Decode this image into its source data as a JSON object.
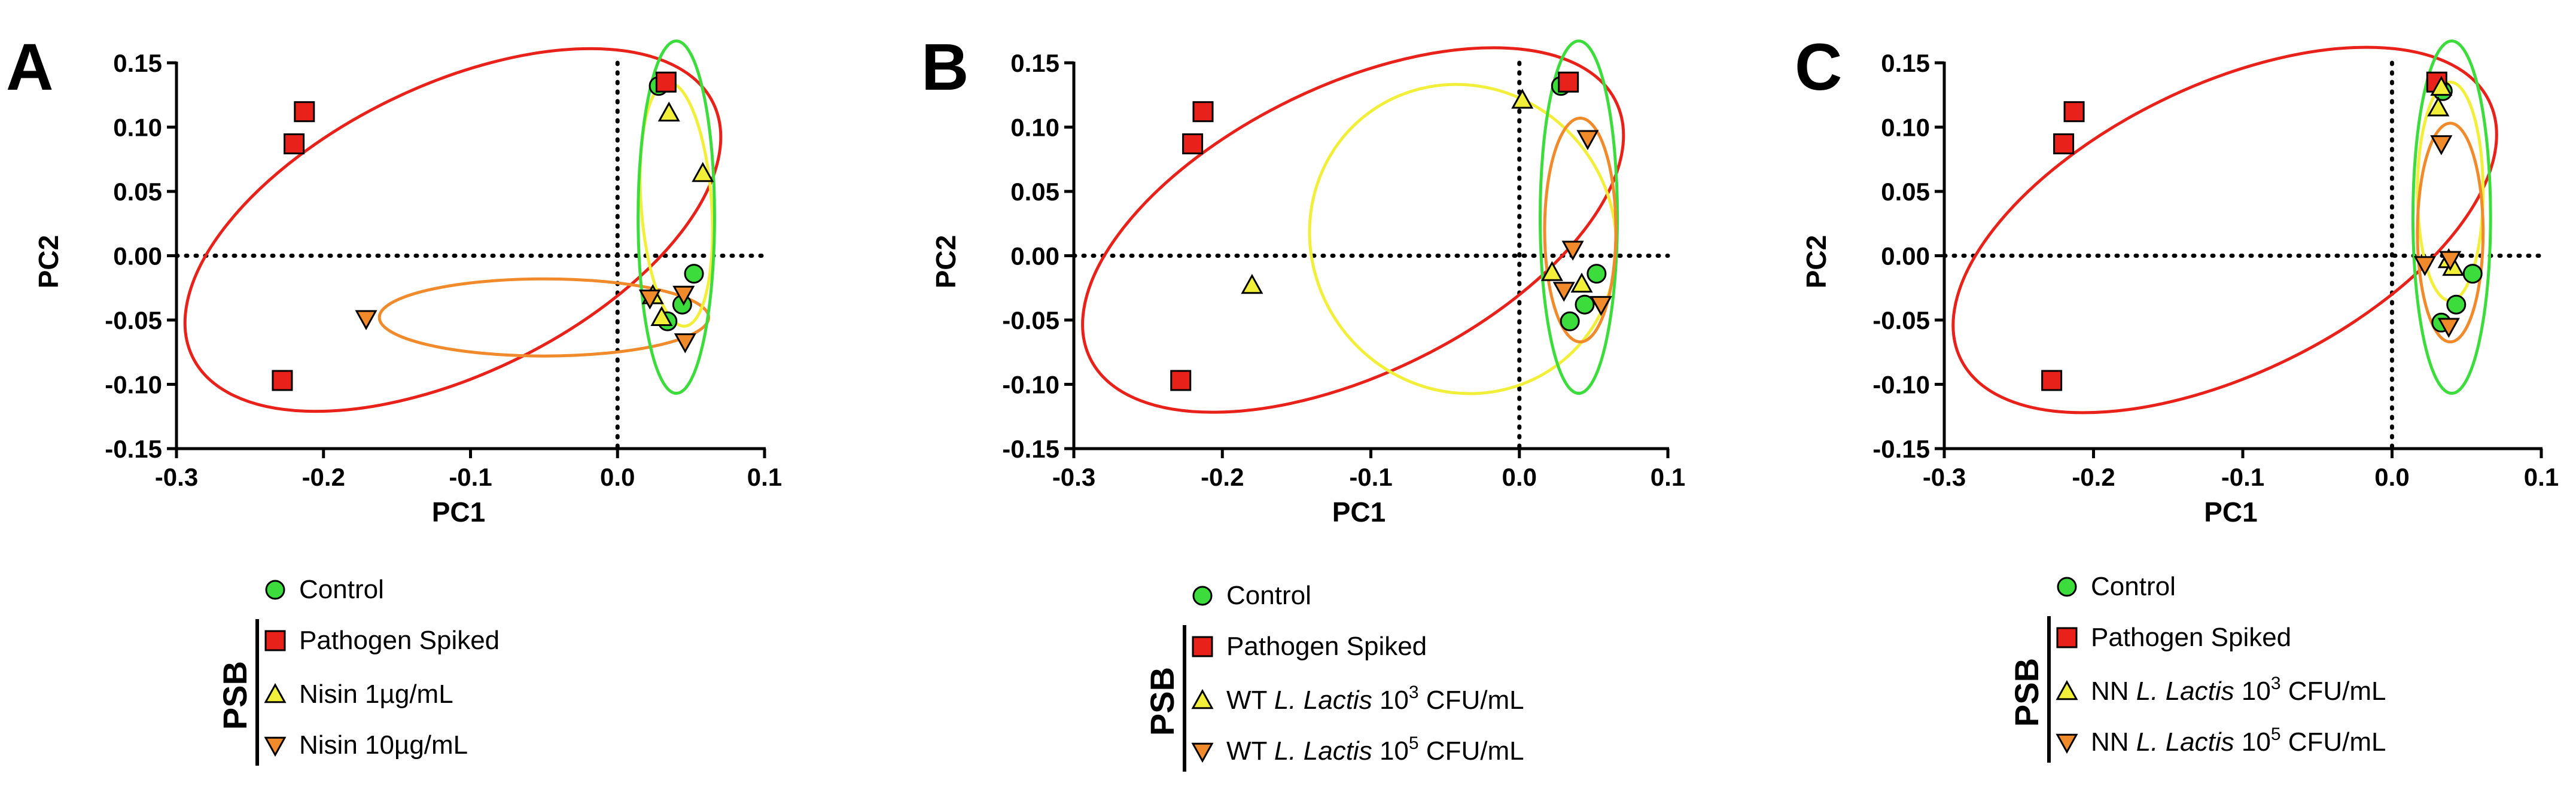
{
  "chart_data": [
    {
      "type": "scatter",
      "panel": "A",
      "xlabel": "PC1",
      "ylabel": "PC2",
      "xlim": [
        -0.3,
        0.1
      ],
      "ylim": [
        -0.15,
        0.15
      ],
      "xticks": [
        "-0.3",
        "-0.2",
        "-0.1",
        "0.0",
        "0.1"
      ],
      "yticks": [
        "0.15",
        "0.10",
        "0.05",
        "0.00",
        "-0.05",
        "-0.10",
        "-0.15"
      ],
      "legend": {
        "group_label": "PSB",
        "entries": [
          {
            "label": "Control"
          },
          {
            "label": "Pathogen Spiked"
          },
          {
            "label": "Nisin 1µg/mL"
          },
          {
            "label": "Nisin 10µg/mL"
          }
        ]
      },
      "series": [
        {
          "name": "Control",
          "marker": "circle",
          "color": "#3ddc3d",
          "points": [
            [
              0.028,
              0.132
            ],
            [
              0.052,
              -0.014
            ],
            [
              0.044,
              -0.038
            ],
            [
              0.034,
              -0.051
            ]
          ]
        },
        {
          "name": "Pathogen Spiked",
          "marker": "square",
          "color": "#e8221a",
          "points": [
            [
              -0.213,
              0.112
            ],
            [
              -0.22,
              0.087
            ],
            [
              -0.228,
              -0.097
            ],
            [
              0.033,
              0.135
            ]
          ]
        },
        {
          "name": "Nisin 1µg/mL",
          "marker": "triangle-up",
          "color": "#f2ef3a",
          "points": [
            [
              0.035,
              0.111
            ],
            [
              0.058,
              0.064
            ],
            [
              0.024,
              -0.031
            ],
            [
              0.03,
              -0.048
            ]
          ]
        },
        {
          "name": "Nisin 10µg/mL",
          "marker": "triangle-down",
          "color": "#f08a2a",
          "points": [
            [
              -0.171,
              -0.049
            ],
            [
              0.022,
              -0.033
            ],
            [
              0.045,
              -0.03
            ],
            [
              0.046,
              -0.067
            ]
          ]
        }
      ],
      "ellipses": [
        {
          "series": "Pathogen Spiked",
          "color": "#e8221a",
          "cx": -0.112,
          "cy": 0.02,
          "rx": 0.197,
          "ry": 0.112,
          "angle": -26
        },
        {
          "series": "Nisin 10µg/mL",
          "color": "#f08a2a",
          "cx": -0.05,
          "cy": -0.048,
          "rx": 0.112,
          "ry": 0.03,
          "angle": 0
        },
        {
          "series": "Nisin 1µg/mL",
          "color": "#f2ef3a",
          "cx": 0.04,
          "cy": 0.04,
          "rx": 0.024,
          "ry": 0.095,
          "angle": -4
        },
        {
          "series": "Control",
          "color": "#3ddc3d",
          "cx": 0.04,
          "cy": 0.03,
          "rx": 0.026,
          "ry": 0.137,
          "angle": 0
        }
      ]
    },
    {
      "type": "scatter",
      "panel": "B",
      "xlabel": "PC1",
      "ylabel": "PC2",
      "xlim": [
        -0.3,
        0.1
      ],
      "ylim": [
        -0.15,
        0.15
      ],
      "xticks": [
        "-0.3",
        "-0.2",
        "-0.1",
        "0.0",
        "0.1"
      ],
      "yticks": [
        "0.15",
        "0.10",
        "0.05",
        "0.00",
        "-0.05",
        "-0.10",
        "-0.15"
      ],
      "legend": {
        "group_label": "PSB",
        "entries": [
          {
            "label": "Control"
          },
          {
            "label": "Pathogen Spiked"
          },
          {
            "label": "WT ",
            "italic": "L. Lactis",
            "pre": " 10",
            "sup": "3",
            "post": " CFU/mL"
          },
          {
            "label": "WT ",
            "italic": "L. Lactis",
            "pre": " 10",
            "sup": "5",
            "post": " CFU/mL"
          }
        ]
      },
      "series": [
        {
          "name": "Control",
          "marker": "circle",
          "color": "#3ddc3d",
          "points": [
            [
              0.028,
              0.132
            ],
            [
              0.052,
              -0.014
            ],
            [
              0.044,
              -0.038
            ],
            [
              0.034,
              -0.051
            ]
          ]
        },
        {
          "name": "Pathogen Spiked",
          "marker": "square",
          "color": "#e8221a",
          "points": [
            [
              -0.213,
              0.112
            ],
            [
              -0.22,
              0.087
            ],
            [
              -0.228,
              -0.097
            ],
            [
              0.033,
              0.135
            ]
          ]
        },
        {
          "name": "WT L. Lactis 10^3 CFU/mL",
          "marker": "triangle-up",
          "color": "#f2ef3a",
          "points": [
            [
              0.002,
              0.121
            ],
            [
              -0.18,
              -0.023
            ],
            [
              0.022,
              -0.013
            ],
            [
              0.042,
              -0.022
            ]
          ]
        },
        {
          "name": "WT L. Lactis 10^5 CFU/mL",
          "marker": "triangle-down",
          "color": "#f08a2a",
          "points": [
            [
              0.046,
              0.091
            ],
            [
              0.036,
              0.005
            ],
            [
              0.03,
              -0.027
            ],
            [
              0.055,
              -0.038
            ]
          ]
        }
      ],
      "ellipses": [
        {
          "series": "Pathogen Spiked",
          "color": "#e8221a",
          "cx": -0.112,
          "cy": 0.02,
          "rx": 0.197,
          "ry": 0.112,
          "angle": -26
        },
        {
          "series": "WT L. Lactis 10^3 CFU/mL",
          "color": "#f2ef3a",
          "cx": -0.038,
          "cy": 0.013,
          "rx": 0.106,
          "ry": 0.117,
          "angle": 50
        },
        {
          "series": "Control",
          "color": "#3ddc3d",
          "cx": 0.04,
          "cy": 0.03,
          "rx": 0.026,
          "ry": 0.137,
          "angle": 0
        },
        {
          "series": "WT L. Lactis 10^5 CFU/mL",
          "color": "#f08a2a",
          "cx": 0.041,
          "cy": 0.02,
          "rx": 0.024,
          "ry": 0.087,
          "angle": 0
        }
      ]
    },
    {
      "type": "scatter",
      "panel": "C",
      "xlabel": "PC1",
      "ylabel": "PC2",
      "xlim": [
        -0.3,
        0.1
      ],
      "ylim": [
        -0.15,
        0.15
      ],
      "xticks": [
        "-0.3",
        "-0.2",
        "-0.1",
        "0.0",
        "0.1"
      ],
      "yticks": [
        "0.15",
        "0.10",
        "0.05",
        "0.00",
        "-0.05",
        "-0.10",
        "-0.15"
      ],
      "legend": {
        "group_label": "PSB",
        "entries": [
          {
            "label": "Control"
          },
          {
            "label": "Pathogen Spiked"
          },
          {
            "label": "NN ",
            "italic": "L. Lactis",
            "pre": " 10",
            "sup": "3",
            "post": " CFU/mL"
          },
          {
            "label": "NN ",
            "italic": "L. Lactis",
            "pre": " 10",
            "sup": "5",
            "post": " CFU/mL"
          }
        ]
      },
      "series": [
        {
          "name": "Control",
          "marker": "circle",
          "color": "#3ddc3d",
          "points": [
            [
              0.034,
              0.128
            ],
            [
              0.054,
              -0.014
            ],
            [
              0.043,
              -0.038
            ],
            [
              0.033,
              -0.052
            ]
          ]
        },
        {
          "name": "Pathogen Spiked",
          "marker": "square",
          "color": "#e8221a",
          "points": [
            [
              -0.213,
              0.112
            ],
            [
              -0.22,
              0.087
            ],
            [
              -0.228,
              -0.097
            ],
            [
              0.03,
              0.135
            ]
          ]
        },
        {
          "name": "NN L. Lactis 10^3 CFU/mL",
          "marker": "triangle-up",
          "color": "#f2ef3a",
          "points": [
            [
              0.033,
              0.131
            ],
            [
              0.031,
              0.115
            ],
            [
              0.038,
              -0.003
            ],
            [
              0.041,
              -0.009
            ]
          ]
        },
        {
          "name": "NN L. Lactis 10^5 CFU/mL",
          "marker": "triangle-down",
          "color": "#f08a2a",
          "points": [
            [
              0.033,
              0.087
            ],
            [
              0.022,
              -0.007
            ],
            [
              0.039,
              -0.003
            ],
            [
              0.038,
              -0.055
            ]
          ]
        }
      ],
      "ellipses": [
        {
          "series": "Pathogen Spiked",
          "color": "#e8221a",
          "cx": -0.112,
          "cy": 0.02,
          "rx": 0.197,
          "ry": 0.112,
          "angle": -26
        },
        {
          "series": "Control",
          "color": "#3ddc3d",
          "cx": 0.04,
          "cy": 0.03,
          "rx": 0.026,
          "ry": 0.137,
          "angle": 0
        },
        {
          "series": "NN L. Lactis 10^3 CFU/mL",
          "color": "#f2ef3a",
          "cx": 0.039,
          "cy": 0.05,
          "rx": 0.022,
          "ry": 0.085,
          "angle": 0
        },
        {
          "series": "NN L. Lactis 10^5 CFU/mL",
          "color": "#f08a2a",
          "cx": 0.039,
          "cy": 0.018,
          "rx": 0.022,
          "ry": 0.085,
          "angle": 0
        }
      ]
    }
  ]
}
